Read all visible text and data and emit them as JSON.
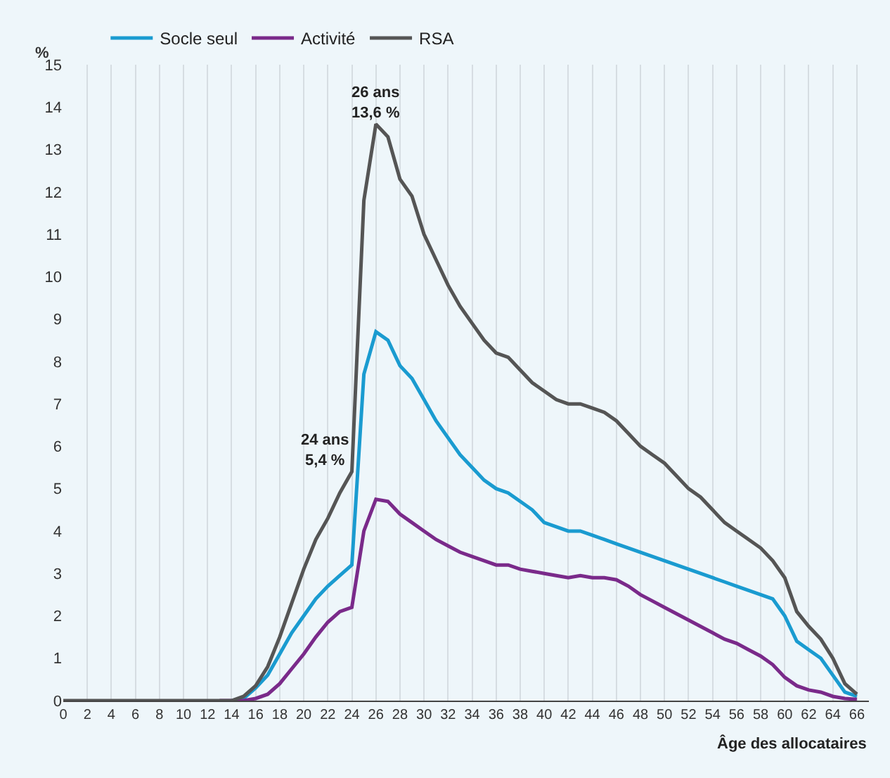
{
  "chart_data": {
    "type": "line",
    "x": [
      0,
      1,
      2,
      3,
      4,
      5,
      6,
      7,
      8,
      9,
      10,
      11,
      12,
      13,
      14,
      15,
      16,
      17,
      18,
      19,
      20,
      21,
      22,
      23,
      24,
      25,
      26,
      27,
      28,
      29,
      30,
      31,
      32,
      33,
      34,
      35,
      36,
      37,
      38,
      39,
      40,
      41,
      42,
      43,
      44,
      45,
      46,
      47,
      48,
      49,
      50,
      51,
      52,
      53,
      54,
      55,
      56,
      57,
      58,
      59,
      60,
      61,
      62,
      63,
      64,
      65,
      66
    ],
    "series": [
      {
        "name": "Socle seul",
        "color": "#1a9bd0",
        "values": [
          null,
          null,
          null,
          null,
          null,
          null,
          null,
          null,
          null,
          null,
          null,
          null,
          null,
          null,
          0,
          0.05,
          0.3,
          0.6,
          1.1,
          1.6,
          2.0,
          2.4,
          2.7,
          2.95,
          3.2,
          7.7,
          8.7,
          8.5,
          7.9,
          7.6,
          7.1,
          6.6,
          6.2,
          5.8,
          5.5,
          5.2,
          5.0,
          4.9,
          4.7,
          4.5,
          4.2,
          4.1,
          4.0,
          4.0,
          3.9,
          3.8,
          3.7,
          3.6,
          3.5,
          3.4,
          3.3,
          3.2,
          3.1,
          3.0,
          2.9,
          2.8,
          2.7,
          2.6,
          2.5,
          2.4,
          2.0,
          1.4,
          1.2,
          1.0,
          0.6,
          0.2,
          0.1
        ]
      },
      {
        "name": "Activité",
        "color": "#7a2a8a",
        "values": [
          null,
          null,
          null,
          null,
          null,
          null,
          null,
          null,
          null,
          null,
          null,
          null,
          null,
          0,
          0,
          0,
          0.05,
          0.15,
          0.4,
          0.75,
          1.1,
          1.5,
          1.85,
          2.1,
          2.2,
          4.0,
          4.75,
          4.7,
          4.4,
          4.2,
          4.0,
          3.8,
          3.65,
          3.5,
          3.4,
          3.3,
          3.2,
          3.2,
          3.1,
          3.05,
          3.0,
          2.95,
          2.9,
          2.95,
          2.9,
          2.9,
          2.85,
          2.7,
          2.5,
          2.35,
          2.2,
          2.05,
          1.9,
          1.75,
          1.6,
          1.45,
          1.35,
          1.2,
          1.05,
          0.85,
          0.55,
          0.35,
          0.25,
          0.2,
          0.1,
          0.05,
          0.03
        ]
      },
      {
        "name": "RSA",
        "color": "#555555",
        "values": [
          0,
          0,
          0,
          0,
          0,
          0,
          0,
          0,
          0,
          0,
          0,
          0,
          0,
          0,
          0,
          0.1,
          0.35,
          0.8,
          1.5,
          2.3,
          3.1,
          3.8,
          4.3,
          4.9,
          5.4,
          11.8,
          13.6,
          13.3,
          12.3,
          11.9,
          11.0,
          10.4,
          9.8,
          9.3,
          8.9,
          8.5,
          8.2,
          8.1,
          7.8,
          7.5,
          7.3,
          7.1,
          7.0,
          7.0,
          6.9,
          6.8,
          6.6,
          6.3,
          6.0,
          5.8,
          5.6,
          5.3,
          5.0,
          4.8,
          4.5,
          4.2,
          4.0,
          3.8,
          3.6,
          3.3,
          2.9,
          2.1,
          1.75,
          1.45,
          1.0,
          0.4,
          0.15
        ]
      }
    ],
    "ylabel": "%",
    "xlabel": "Âge des allocataires",
    "annotations": [
      {
        "text": "26 ans\n13,6 %",
        "x": 26,
        "y": 13.6
      },
      {
        "text": "24 ans\n5,4 %",
        "x": 24,
        "y": 5.4
      }
    ],
    "xlim": [
      0,
      67
    ],
    "xticks": [
      0,
      2,
      4,
      6,
      8,
      10,
      12,
      14,
      16,
      18,
      20,
      22,
      24,
      26,
      28,
      30,
      32,
      34,
      36,
      38,
      40,
      42,
      44,
      46,
      48,
      50,
      52,
      54,
      56,
      58,
      60,
      62,
      64,
      66
    ],
    "ylim": [
      0,
      15
    ],
    "yticks": [
      0,
      1,
      2,
      3,
      4,
      5,
      6,
      7,
      8,
      9,
      10,
      11,
      12,
      13,
      14,
      15
    ],
    "grid": "x",
    "legend": "top left",
    "marker": "none",
    "line_style": "solid"
  }
}
